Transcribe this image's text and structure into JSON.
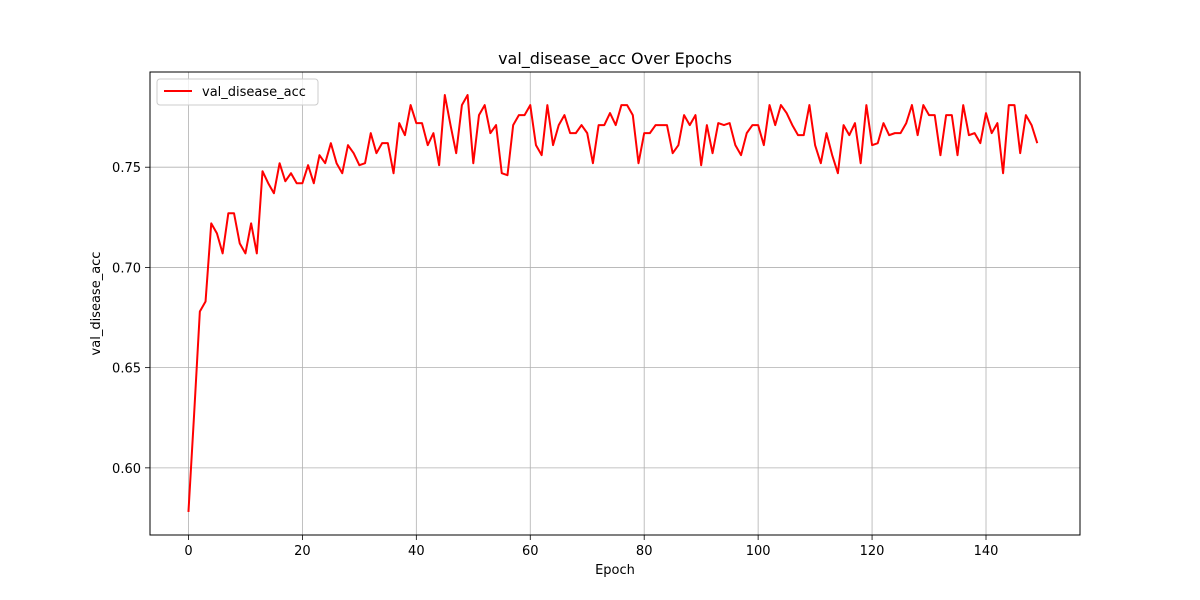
{
  "chart_data": {
    "type": "line",
    "title": "val_disease_acc Over Epochs",
    "xlabel": "Epoch",
    "ylabel": "val_disease_acc",
    "xlim": [
      -6.75,
      156.5
    ],
    "ylim": [
      0.5665,
      0.7975
    ],
    "x_ticks": [
      0,
      20,
      40,
      60,
      80,
      100,
      120,
      140
    ],
    "x_tick_labels": [
      "0",
      "20",
      "40",
      "60",
      "80",
      "100",
      "120",
      "140"
    ],
    "y_ticks": [
      0.6,
      0.65,
      0.7,
      0.75
    ],
    "y_tick_labels": [
      "0.60",
      "0.65",
      "0.70",
      "0.75"
    ],
    "grid": true,
    "legend_position": "top-left",
    "series": [
      {
        "name": "val_disease_acc",
        "color": "#ff0000",
        "x_start": 0,
        "x_step": 1,
        "values": [
          0.578,
          0.627,
          0.678,
          0.683,
          0.722,
          0.717,
          0.707,
          0.727,
          0.727,
          0.712,
          0.707,
          0.722,
          0.707,
          0.748,
          0.742,
          0.737,
          0.752,
          0.743,
          0.747,
          0.742,
          0.742,
          0.751,
          0.742,
          0.756,
          0.752,
          0.762,
          0.752,
          0.747,
          0.761,
          0.757,
          0.751,
          0.752,
          0.767,
          0.757,
          0.762,
          0.762,
          0.747,
          0.772,
          0.766,
          0.781,
          0.772,
          0.772,
          0.761,
          0.767,
          0.751,
          0.786,
          0.771,
          0.757,
          0.781,
          0.786,
          0.752,
          0.776,
          0.781,
          0.767,
          0.771,
          0.747,
          0.746,
          0.771,
          0.776,
          0.776,
          0.781,
          0.761,
          0.756,
          0.781,
          0.761,
          0.771,
          0.776,
          0.767,
          0.767,
          0.771,
          0.767,
          0.752,
          0.771,
          0.771,
          0.777,
          0.771,
          0.781,
          0.781,
          0.776,
          0.752,
          0.767,
          0.767,
          0.771,
          0.771,
          0.771,
          0.757,
          0.761,
          0.776,
          0.771,
          0.776,
          0.751,
          0.771,
          0.757,
          0.772,
          0.771,
          0.772,
          0.761,
          0.756,
          0.767,
          0.771,
          0.771,
          0.761,
          0.781,
          0.771,
          0.781,
          0.777,
          0.771,
          0.766,
          0.766,
          0.781,
          0.761,
          0.752,
          0.767,
          0.756,
          0.747,
          0.771,
          0.766,
          0.772,
          0.752,
          0.781,
          0.761,
          0.762,
          0.772,
          0.766,
          0.767,
          0.767,
          0.772,
          0.781,
          0.766,
          0.781,
          0.776,
          0.776,
          0.756,
          0.776,
          0.776,
          0.756,
          0.781,
          0.766,
          0.767,
          0.762,
          0.777,
          0.767,
          0.772,
          0.747,
          0.781,
          0.781,
          0.757,
          0.776,
          0.771,
          0.762
        ]
      }
    ]
  }
}
